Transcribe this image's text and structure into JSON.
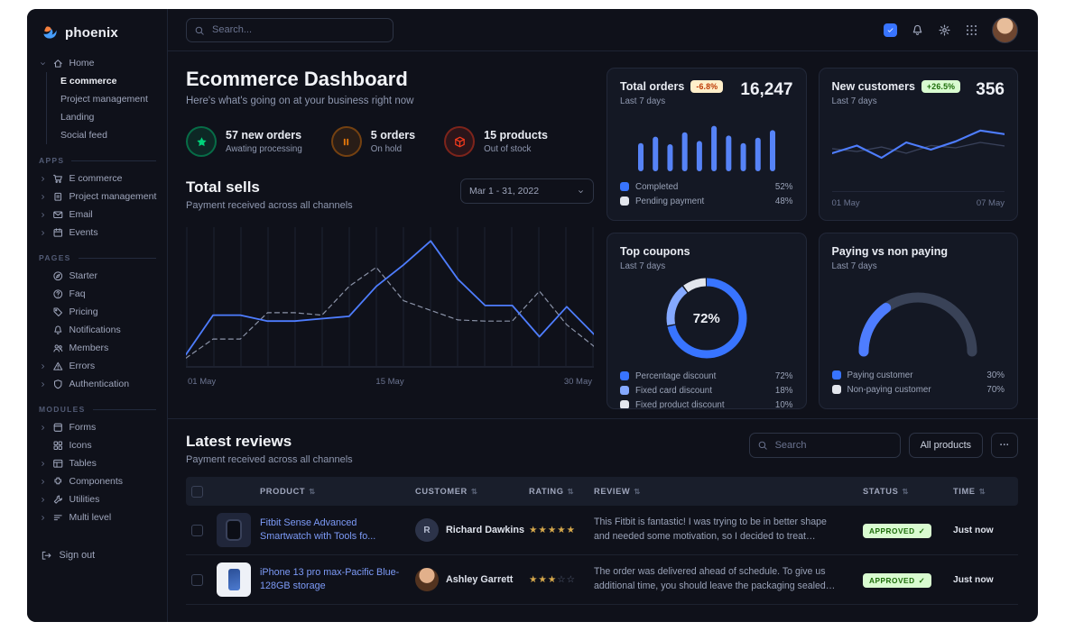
{
  "brand": "phoenix",
  "topbar": {
    "search_placeholder": "Search..."
  },
  "sidebar": {
    "home": {
      "label": "Home",
      "children": [
        {
          "label": "E commerce",
          "active": true
        },
        {
          "label": "Project management"
        },
        {
          "label": "Landing"
        },
        {
          "label": "Social feed"
        }
      ]
    },
    "sections": [
      {
        "title": "APPS",
        "items": [
          {
            "label": "E commerce",
            "icon": "cart",
            "caret": true
          },
          {
            "label": "Project management",
            "icon": "clipboard",
            "caret": true
          },
          {
            "label": "Email",
            "icon": "mail",
            "caret": true
          },
          {
            "label": "Events",
            "icon": "calendar",
            "caret": true
          }
        ]
      },
      {
        "title": "PAGES",
        "items": [
          {
            "label": "Starter",
            "icon": "compass"
          },
          {
            "label": "Faq",
            "icon": "question"
          },
          {
            "label": "Pricing",
            "icon": "tag"
          },
          {
            "label": "Notifications",
            "icon": "bell"
          },
          {
            "label": "Members",
            "icon": "users"
          },
          {
            "label": "Errors",
            "icon": "warning",
            "caret": true
          },
          {
            "label": "Authentication",
            "icon": "shield",
            "caret": true
          }
        ]
      },
      {
        "title": "MODULES",
        "items": [
          {
            "label": "Forms",
            "icon": "box",
            "caret": true
          },
          {
            "label": "Icons",
            "icon": "grid"
          },
          {
            "label": "Tables",
            "icon": "table",
            "caret": true
          },
          {
            "label": "Components",
            "icon": "puzzle",
            "caret": true
          },
          {
            "label": "Utilities",
            "icon": "wrench",
            "caret": true
          },
          {
            "label": "Multi level",
            "icon": "layers",
            "caret": true
          }
        ]
      }
    ],
    "signout": "Sign out"
  },
  "header": {
    "title": "Ecommerce Dashboard",
    "subtitle": "Here's what's going on at your business right now"
  },
  "stats": [
    {
      "value": "57 new orders",
      "caption": "Awating processing",
      "color": "#00d27a",
      "icon": "star"
    },
    {
      "value": "5 orders",
      "caption": "On hold",
      "color": "#e5780b",
      "icon": "pause"
    },
    {
      "value": "15 products",
      "caption": "Out of stock",
      "color": "#fa3b1d",
      "icon": "cube"
    }
  ],
  "total_sells": {
    "title": "Total sells",
    "subtitle": "Payment received across all channels",
    "date_range": "Mar 1 - 31, 2022",
    "chart": {
      "type": "line",
      "x_ticks": [
        "01 May",
        "15 May",
        "30 May"
      ],
      "ylim": [
        0,
        110
      ],
      "series": [
        {
          "name": "current",
          "style": "solid",
          "color": "#4e7dff",
          "values": [
            5,
            38,
            38,
            33,
            33,
            35,
            37,
            62,
            80,
            100,
            68,
            46,
            46,
            20,
            45,
            22
          ]
        },
        {
          "name": "previous",
          "style": "dashed",
          "color": "#8b93a8",
          "values": [
            2,
            18,
            18,
            40,
            40,
            38,
            62,
            78,
            50,
            42,
            34,
            33,
            33,
            58,
            30,
            12
          ]
        }
      ]
    }
  },
  "cards": {
    "total_orders": {
      "title": "Total orders",
      "badge": "-6.8%",
      "badge_tone": "warning",
      "value": "16,247",
      "period": "Last 7 days",
      "chart": {
        "type": "bar",
        "color": "#5683f7",
        "values": [
          52,
          64,
          50,
          72,
          56,
          84,
          66,
          52,
          62,
          76
        ]
      },
      "legend": [
        {
          "label": "Completed",
          "pct": "52%",
          "swatch": "#3874ff"
        },
        {
          "label": "Pending payment",
          "pct": "48%",
          "swatch": "#e3e6ed"
        }
      ]
    },
    "new_customers": {
      "title": "New customers",
      "badge": "+26.5%",
      "badge_tone": "success",
      "value": "356",
      "period": "Last 7 days",
      "chart": {
        "type": "line",
        "x_ticks": [
          "01 May",
          "07 May"
        ],
        "series": [
          {
            "name": "current",
            "color": "#4e7dff",
            "width": 2.2,
            "values": [
              38,
              55,
              28,
              62,
              46,
              64,
              88,
              80
            ]
          },
          {
            "name": "previous",
            "color": "#39415a",
            "width": 1.4,
            "values": [
              48,
              42,
              52,
              38,
              55,
              50,
              62,
              54
            ]
          }
        ]
      }
    },
    "top_coupons": {
      "title": "Top coupons",
      "period": "Last 7 days",
      "center_label": "72%",
      "chart_type": "donut",
      "slices": [
        {
          "label": "Percentage discount",
          "pct": "72%",
          "value": 72,
          "color": "#3874ff"
        },
        {
          "label": "Fixed card discount",
          "pct": "18%",
          "value": 18,
          "color": "#85a9ff"
        },
        {
          "label": "Fixed product discount",
          "pct": "10%",
          "value": 10,
          "color": "#e3e6ed"
        }
      ]
    },
    "paying": {
      "title": "Paying vs non paying",
      "period": "Last 7 days",
      "chart_type": "gauge",
      "slices": [
        {
          "label": "Paying customer",
          "pct": "30%",
          "value": 30,
          "color": "#4e7dff",
          "swatch": "#3874ff"
        },
        {
          "label": "Non-paying customer",
          "pct": "70%",
          "value": 70,
          "color": "#394257",
          "swatch": "#e3e6ed"
        }
      ]
    }
  },
  "reviews": {
    "title": "Latest reviews",
    "subtitle": "Payment received across all channels",
    "search_placeholder": "Search",
    "filter_label": "All products",
    "more_label": "···",
    "columns": [
      {
        "label": "PRODUCT"
      },
      {
        "label": "CUSTOMER"
      },
      {
        "label": "RATING"
      },
      {
        "label": "REVIEW"
      },
      {
        "label": "STATUS"
      },
      {
        "label": "TIME"
      }
    ],
    "rows": [
      {
        "product": "Fitbit Sense Advanced Smartwatch with Tools fo...",
        "thumb": "watch",
        "customer": "Richard Dawkins",
        "avatar_type": "initial",
        "avatar_text": "R",
        "rating": 5,
        "review": "This Fitbit is fantastic! I was trying to be in better shape and needed some motivation, so I decided to treat myself to a new Fitbit.",
        "status": "APPROVED",
        "time": "Just now"
      },
      {
        "product": "iPhone 13 pro max-Pacific Blue-128GB storage",
        "thumb": "phone",
        "customer": "Ashley Garrett",
        "avatar_type": "photo",
        "avatar_text": "",
        "rating": 3,
        "review": "The order was delivered ahead of schedule. To give us additional time, you should leave the packaging sealed with plastic.",
        "status": "APPROVED",
        "time": "Just now"
      }
    ]
  }
}
